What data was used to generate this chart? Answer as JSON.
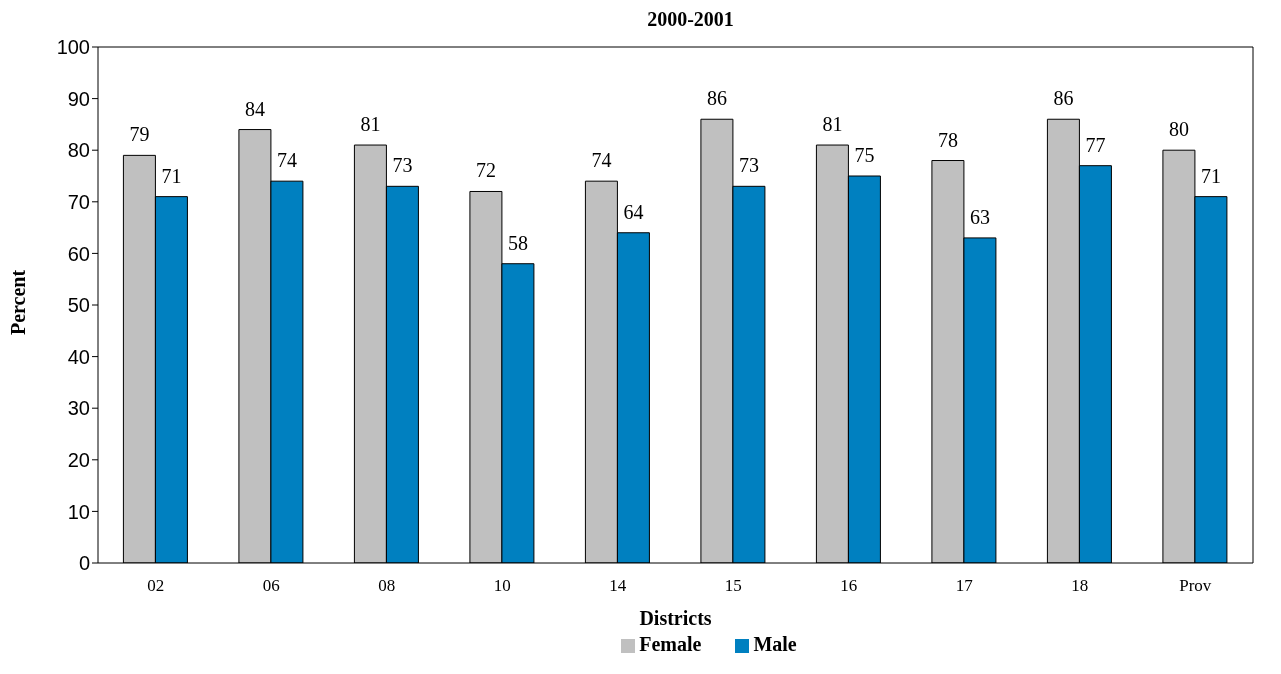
{
  "chart_data": {
    "type": "bar",
    "title": "2000-2001",
    "xlabel": "Districts",
    "ylabel": "Percent",
    "categories": [
      "02",
      "06",
      "08",
      "10",
      "14",
      "15",
      "16",
      "17",
      "18",
      "Prov"
    ],
    "series": [
      {
        "name": "Female",
        "color": "#c0c0c0",
        "values": [
          79,
          84,
          81,
          72,
          74,
          86,
          81,
          78,
          86,
          80
        ]
      },
      {
        "name": "Male",
        "color": "#0080c0",
        "values": [
          71,
          74,
          73,
          58,
          64,
          73,
          75,
          63,
          77,
          71
        ]
      }
    ],
    "ylim": [
      0,
      100
    ],
    "yticks": [
      0,
      10,
      20,
      30,
      40,
      50,
      60,
      70,
      80,
      90,
      100
    ],
    "grid": false,
    "legend": "bottom",
    "data_labels": true
  }
}
